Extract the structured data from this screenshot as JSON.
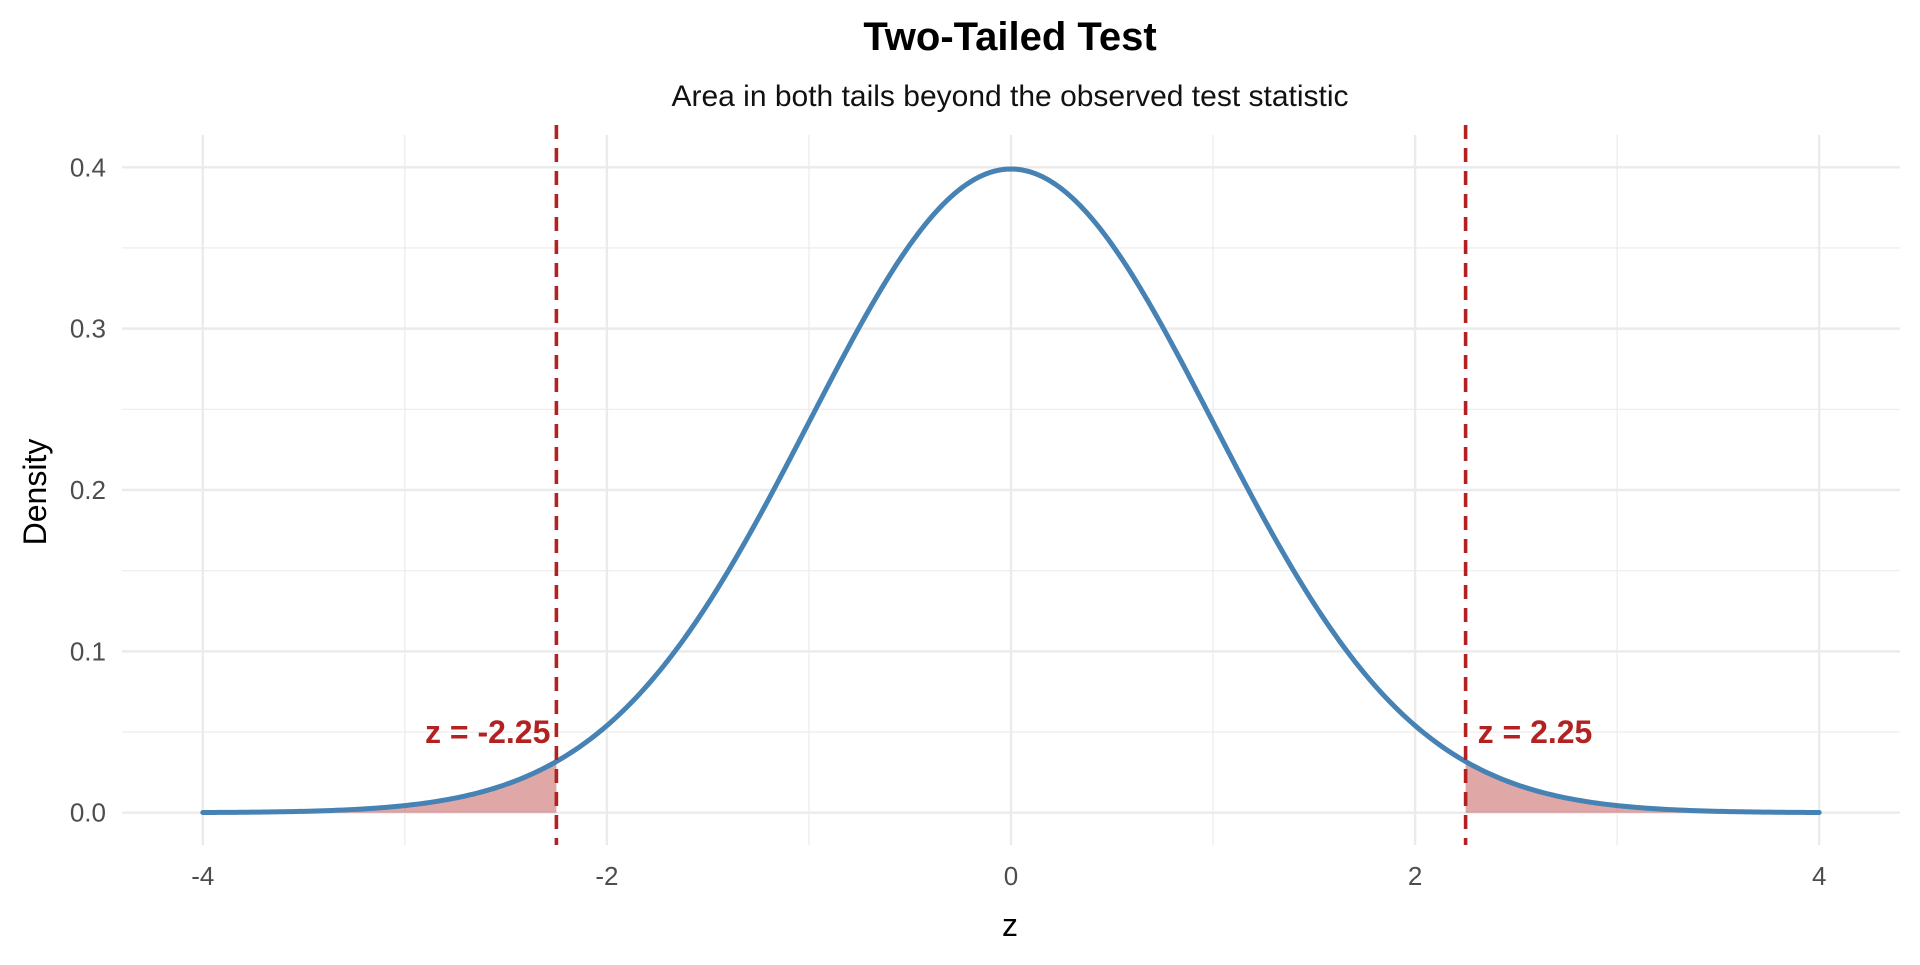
{
  "chart_data": {
    "type": "area",
    "title": "Two-Tailed Test",
    "subtitle": "Area in both tails beyond the observed test statistic",
    "xlabel": "z",
    "ylabel": "Density",
    "xlim": [
      -4,
      4
    ],
    "ylim": [
      0,
      0.4
    ],
    "x_ticks": [
      -4,
      -2,
      0,
      2,
      4
    ],
    "x_tick_labels": [
      "-4",
      "-2",
      "0",
      "2",
      "4"
    ],
    "y_ticks": [
      0,
      0.1,
      0.2,
      0.3,
      0.4
    ],
    "y_tick_labels": [
      "0.0",
      "0.1",
      "0.2",
      "0.3",
      "0.4"
    ],
    "grid": true,
    "legend": "none",
    "curve": {
      "distribution": "standard normal density",
      "x": [
        -4,
        -3.5,
        -3,
        -2.5,
        -2.25,
        -2,
        -1.5,
        -1,
        -0.5,
        0,
        0.5,
        1,
        1.5,
        2,
        2.25,
        2.5,
        3,
        3.5,
        4
      ],
      "y": [
        0.0001,
        0.0009,
        0.0044,
        0.0175,
        0.0317,
        0.054,
        0.1295,
        0.242,
        0.3521,
        0.3989,
        0.3521,
        0.242,
        0.1295,
        0.054,
        0.0317,
        0.0175,
        0.0044,
        0.0009,
        0.0001
      ],
      "color": "#4682b4"
    },
    "shaded_regions": [
      {
        "from": -4,
        "to": -2.25,
        "color": "#b22222"
      },
      {
        "from": 2.25,
        "to": 4,
        "color": "#b22222"
      }
    ],
    "reference_lines": [
      {
        "x": -2.25,
        "label": "z = -2.25",
        "color": "#b22222"
      },
      {
        "x": 2.25,
        "label": "z = 2.25",
        "color": "#b22222"
      }
    ],
    "colors": {
      "curve": "#4682b4",
      "critical": "#b22222",
      "shade": "#b22222",
      "grid": "#ebebeb"
    }
  }
}
